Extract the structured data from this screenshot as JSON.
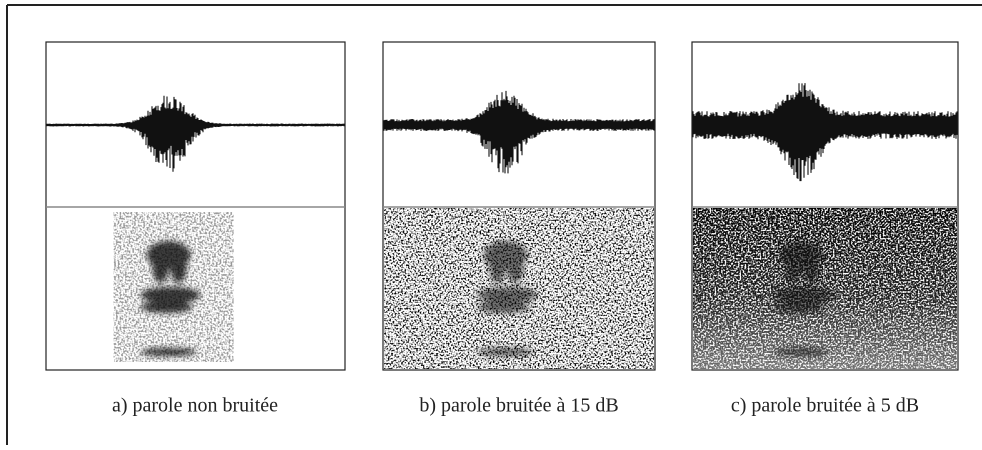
{
  "figure": {
    "captions": [
      "a) parole non bruitée",
      "b) parole bruitée à 15 dB",
      "c) parole bruitée à 5 dB"
    ]
  }
}
